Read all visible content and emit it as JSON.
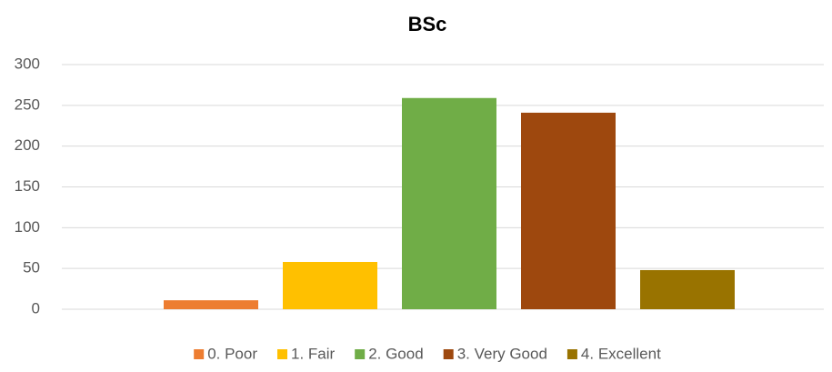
{
  "chart_data": {
    "type": "bar",
    "title": "BSc",
    "series": [
      {
        "name": "0. Poor",
        "color": "#ed7d31",
        "values": [
          11
        ]
      },
      {
        "name": "1. Fair",
        "color": "#ffc000",
        "values": [
          58
        ]
      },
      {
        "name": "2. Good",
        "color": "#70ad47",
        "values": [
          259
        ]
      },
      {
        "name": "3. Very Good",
        "color": "#9e480e",
        "values": [
          241
        ]
      },
      {
        "name": "4. Excellent",
        "color": "#997300",
        "values": [
          48
        ]
      }
    ],
    "ylim": [
      0,
      300
    ],
    "yticks": [
      0,
      50,
      100,
      150,
      200,
      250,
      300
    ],
    "grid": true,
    "legend": "bottom"
  }
}
